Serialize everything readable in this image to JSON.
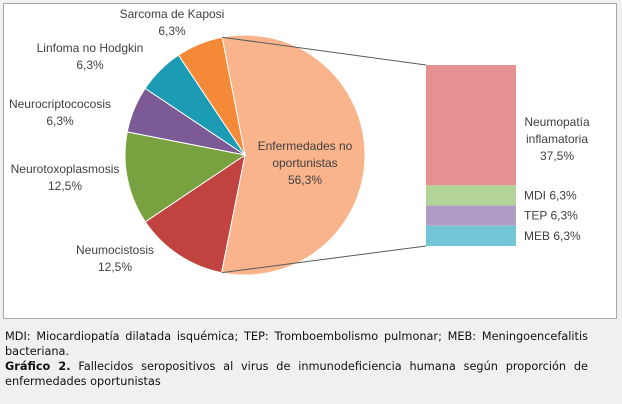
{
  "chart_data": {
    "type": "pie",
    "subtype": "bar-of-pie",
    "pie": [
      {
        "label": "Enfermedades no oportunistas",
        "value": 56.3,
        "value_label": "56,3%",
        "color": "#F9B48C"
      },
      {
        "label": "Neumocistosis",
        "value": 12.5,
        "value_label": "12,5%",
        "color": "#C0433F"
      },
      {
        "label": "Neurotoxoplasmosis",
        "value": 12.5,
        "value_label": "12,5%",
        "color": "#78A140"
      },
      {
        "label": "Neurocriptococosis",
        "value": 6.3,
        "value_label": "6,3%",
        "color": "#7B5A96"
      },
      {
        "label": "Linfoma no Hodgkin",
        "value": 6.3,
        "value_label": "6,3%",
        "color": "#1C9BB5"
      },
      {
        "label": "Sarcoma de Kaposi",
        "value": 6.3,
        "value_label": "6,3%",
        "color": "#F48A37"
      }
    ],
    "bar": [
      {
        "label": "Neumopatía inflamatoria",
        "value": 37.5,
        "value_label": "37,5%",
        "color": "#E69191"
      },
      {
        "label": "MDI",
        "value": 6.3,
        "value_label": "6,3%",
        "color": "#B3D498"
      },
      {
        "label": "TEP",
        "value": 6.3,
        "value_label": "6,3%",
        "color": "#AF9DC5"
      },
      {
        "label": "MEB",
        "value": 6.3,
        "value_label": "6,3%",
        "color": "#73C6D8"
      }
    ]
  },
  "caption": {
    "abbreviations": "MDI: Miocardiopatía dilatada isquémica; TEP: Tromboembolismo pulmonar; MEB: Meningoencefalitis bacteriana.",
    "figure_label": "Gráfico 2.",
    "figure_text": " Fallecidos seropositivos al virus de inmunodeficiencia humana según proporción de enfermedades oportunistas"
  }
}
